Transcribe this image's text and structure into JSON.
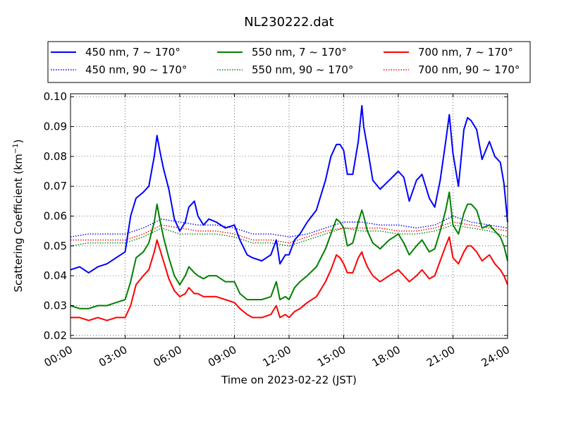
{
  "chart_data": {
    "type": "line",
    "title": "NL230222.dat",
    "xlabel": "Time on 2023-02-22 (JST)",
    "ylabel": "Scattering Coefficient (km",
    "ylabel_sup": "−1",
    "ylabel_close": ")",
    "x_unit": "hours since 2023-02-22 00:00 JST",
    "xlim": [
      0,
      24
    ],
    "ylim": [
      0.019,
      0.101
    ],
    "grid": true,
    "legend_position": "top",
    "x_ticks": [
      {
        "value": 0,
        "label": "00:00"
      },
      {
        "value": 3,
        "label": "03:00"
      },
      {
        "value": 6,
        "label": "06:00"
      },
      {
        "value": 9,
        "label": "09:00"
      },
      {
        "value": 12,
        "label": "12:00"
      },
      {
        "value": 15,
        "label": "15:00"
      },
      {
        "value": 18,
        "label": "18:00"
      },
      {
        "value": 21,
        "label": "21:00"
      },
      {
        "value": 24,
        "label": "24:00"
      }
    ],
    "y_ticks": [
      {
        "value": 0.02,
        "label": "0.02"
      },
      {
        "value": 0.03,
        "label": "0.03"
      },
      {
        "value": 0.04,
        "label": "0.04"
      },
      {
        "value": 0.05,
        "label": "0.05"
      },
      {
        "value": 0.06,
        "label": "0.06"
      },
      {
        "value": 0.07,
        "label": "0.07"
      },
      {
        "value": 0.08,
        "label": "0.08"
      },
      {
        "value": 0.09,
        "label": "0.09"
      },
      {
        "value": 0.1,
        "label": "0.10"
      }
    ],
    "series": [
      {
        "name": "450 nm, 7 ~ 170°",
        "color": "#0000ff",
        "style": "solid",
        "x": [
          0,
          0.5,
          1,
          1.5,
          2,
          2.5,
          3,
          3.3,
          3.6,
          4,
          4.3,
          4.6,
          4.75,
          4.9,
          5.1,
          5.4,
          5.7,
          6,
          6.3,
          6.5,
          6.8,
          7,
          7.3,
          7.6,
          8,
          8.5,
          9,
          9.3,
          9.7,
          10,
          10.5,
          11,
          11.3,
          11.5,
          11.8,
          12,
          12.3,
          12.6,
          13,
          13.5,
          14,
          14.3,
          14.6,
          14.8,
          15,
          15.2,
          15.5,
          15.8,
          16,
          16.1,
          16.3,
          16.6,
          17,
          17.5,
          18,
          18.3,
          18.6,
          19,
          19.3,
          19.7,
          20,
          20.3,
          20.6,
          20.8,
          21,
          21.3,
          21.6,
          21.8,
          22,
          22.3,
          22.6,
          23,
          23.3,
          23.6,
          23.8,
          24
        ],
        "y": [
          0.042,
          0.043,
          0.041,
          0.043,
          0.044,
          0.046,
          0.048,
          0.06,
          0.066,
          0.068,
          0.07,
          0.08,
          0.087,
          0.082,
          0.076,
          0.069,
          0.059,
          0.055,
          0.058,
          0.063,
          0.065,
          0.06,
          0.057,
          0.059,
          0.058,
          0.056,
          0.057,
          0.052,
          0.047,
          0.046,
          0.045,
          0.047,
          0.052,
          0.044,
          0.047,
          0.047,
          0.052,
          0.054,
          0.058,
          0.062,
          0.072,
          0.08,
          0.084,
          0.084,
          0.082,
          0.074,
          0.074,
          0.085,
          0.097,
          0.09,
          0.083,
          0.072,
          0.069,
          0.072,
          0.075,
          0.073,
          0.065,
          0.072,
          0.074,
          0.066,
          0.063,
          0.072,
          0.085,
          0.094,
          0.081,
          0.07,
          0.089,
          0.093,
          0.092,
          0.089,
          0.079,
          0.085,
          0.08,
          0.078,
          0.071,
          0.058
        ]
      },
      {
        "name": "450 nm, 90 ~ 170°",
        "color": "#0000ff",
        "style": "dotted",
        "x": [
          0,
          1,
          2,
          3,
          4,
          5,
          6,
          7,
          8,
          9,
          10,
          11,
          12,
          13,
          14,
          15,
          16,
          17,
          18,
          19,
          20,
          21,
          22,
          23,
          24
        ],
        "y": [
          0.053,
          0.054,
          0.054,
          0.054,
          0.056,
          0.059,
          0.058,
          0.057,
          0.057,
          0.056,
          0.054,
          0.054,
          0.053,
          0.054,
          0.056,
          0.058,
          0.058,
          0.057,
          0.057,
          0.056,
          0.057,
          0.06,
          0.058,
          0.057,
          0.056
        ]
      },
      {
        "name": "550 nm, 7 ~ 170°",
        "color": "#008000",
        "style": "solid",
        "x": [
          0,
          0.5,
          1,
          1.5,
          2,
          2.5,
          3,
          3.3,
          3.6,
          4,
          4.3,
          4.6,
          4.75,
          4.9,
          5.1,
          5.4,
          5.7,
          6,
          6.3,
          6.5,
          6.8,
          7,
          7.3,
          7.6,
          8,
          8.5,
          9,
          9.3,
          9.7,
          10,
          10.5,
          11,
          11.3,
          11.5,
          11.8,
          12,
          12.3,
          12.6,
          13,
          13.5,
          14,
          14.3,
          14.6,
          14.8,
          15,
          15.2,
          15.5,
          15.8,
          16,
          16.1,
          16.3,
          16.6,
          17,
          17.5,
          18,
          18.3,
          18.6,
          19,
          19.3,
          19.7,
          20,
          20.3,
          20.6,
          20.8,
          21,
          21.3,
          21.6,
          21.8,
          22,
          22.3,
          22.6,
          23,
          23.3,
          23.6,
          23.8,
          24
        ],
        "y": [
          0.03,
          0.029,
          0.029,
          0.03,
          0.03,
          0.031,
          0.032,
          0.038,
          0.046,
          0.048,
          0.051,
          0.058,
          0.064,
          0.059,
          0.053,
          0.046,
          0.04,
          0.037,
          0.04,
          0.043,
          0.041,
          0.04,
          0.039,
          0.04,
          0.04,
          0.038,
          0.038,
          0.034,
          0.032,
          0.032,
          0.032,
          0.033,
          0.038,
          0.032,
          0.033,
          0.032,
          0.036,
          0.038,
          0.04,
          0.043,
          0.049,
          0.054,
          0.059,
          0.058,
          0.056,
          0.05,
          0.051,
          0.058,
          0.062,
          0.06,
          0.055,
          0.051,
          0.049,
          0.052,
          0.054,
          0.051,
          0.047,
          0.05,
          0.052,
          0.048,
          0.049,
          0.055,
          0.062,
          0.068,
          0.057,
          0.054,
          0.061,
          0.064,
          0.064,
          0.062,
          0.056,
          0.057,
          0.055,
          0.053,
          0.05,
          0.045
        ]
      },
      {
        "name": "550 nm, 90 ~ 170°",
        "color": "#008000",
        "style": "dotted",
        "x": [
          0,
          1,
          2,
          3,
          4,
          5,
          6,
          7,
          8,
          9,
          10,
          11,
          12,
          13,
          14,
          15,
          16,
          17,
          18,
          19,
          20,
          21,
          22,
          23,
          24
        ],
        "y": [
          0.05,
          0.051,
          0.051,
          0.051,
          0.053,
          0.056,
          0.054,
          0.054,
          0.054,
          0.053,
          0.051,
          0.051,
          0.05,
          0.052,
          0.054,
          0.056,
          0.055,
          0.055,
          0.054,
          0.054,
          0.055,
          0.057,
          0.056,
          0.055,
          0.053
        ]
      },
      {
        "name": "700 nm, 7 ~ 170°",
        "color": "#ff0000",
        "style": "solid",
        "x": [
          0,
          0.5,
          1,
          1.5,
          2,
          2.5,
          3,
          3.3,
          3.6,
          4,
          4.3,
          4.6,
          4.75,
          4.9,
          5.1,
          5.4,
          5.7,
          6,
          6.3,
          6.5,
          6.8,
          7,
          7.3,
          7.6,
          8,
          8.5,
          9,
          9.3,
          9.7,
          10,
          10.5,
          11,
          11.3,
          11.5,
          11.8,
          12,
          12.3,
          12.6,
          13,
          13.5,
          14,
          14.3,
          14.6,
          14.8,
          15,
          15.2,
          15.5,
          15.8,
          16,
          16.1,
          16.3,
          16.6,
          17,
          17.5,
          18,
          18.3,
          18.6,
          19,
          19.3,
          19.7,
          20,
          20.3,
          20.6,
          20.8,
          21,
          21.3,
          21.6,
          21.8,
          22,
          22.3,
          22.6,
          23,
          23.3,
          23.6,
          23.8,
          24
        ],
        "y": [
          0.026,
          0.026,
          0.025,
          0.026,
          0.025,
          0.026,
          0.026,
          0.03,
          0.037,
          0.04,
          0.042,
          0.048,
          0.052,
          0.049,
          0.045,
          0.039,
          0.035,
          0.033,
          0.034,
          0.036,
          0.034,
          0.034,
          0.033,
          0.033,
          0.033,
          0.032,
          0.031,
          0.029,
          0.027,
          0.026,
          0.026,
          0.027,
          0.03,
          0.026,
          0.027,
          0.026,
          0.028,
          0.029,
          0.031,
          0.033,
          0.038,
          0.042,
          0.047,
          0.046,
          0.044,
          0.041,
          0.041,
          0.046,
          0.048,
          0.046,
          0.043,
          0.04,
          0.038,
          0.04,
          0.042,
          0.04,
          0.038,
          0.04,
          0.042,
          0.039,
          0.04,
          0.045,
          0.05,
          0.053,
          0.046,
          0.044,
          0.048,
          0.05,
          0.05,
          0.048,
          0.045,
          0.047,
          0.044,
          0.042,
          0.04,
          0.037
        ]
      },
      {
        "name": "700 nm, 90 ~ 170°",
        "color": "#ff0000",
        "style": "dotted",
        "x": [
          0,
          1,
          2,
          3,
          4,
          5,
          6,
          7,
          8,
          9,
          10,
          11,
          12,
          13,
          14,
          15,
          16,
          17,
          18,
          19,
          20,
          21,
          22,
          23,
          24
        ],
        "y": [
          0.052,
          0.052,
          0.052,
          0.052,
          0.054,
          0.057,
          0.056,
          0.055,
          0.055,
          0.054,
          0.052,
          0.052,
          0.051,
          0.053,
          0.055,
          0.056,
          0.056,
          0.056,
          0.055,
          0.055,
          0.056,
          0.058,
          0.057,
          0.056,
          0.055
        ]
      }
    ]
  }
}
